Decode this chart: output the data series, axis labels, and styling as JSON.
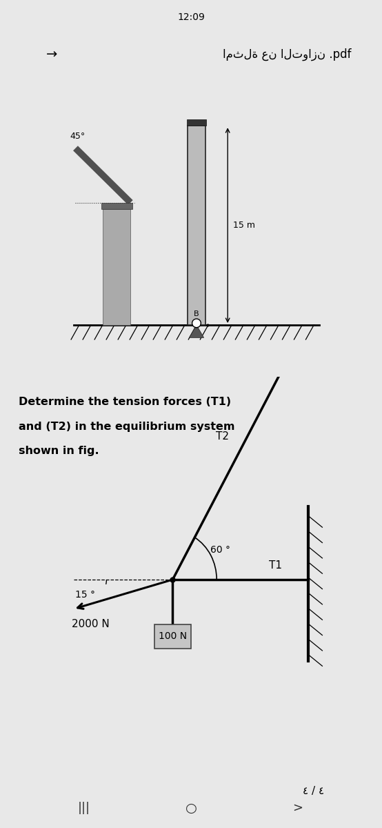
{
  "bg_color": "#e8e8e8",
  "panel1_bg": "#ffffff",
  "panel2_bg": "#ffffff",
  "status_bar_text": "12:09",
  "header_text": "امثلة عن التوازن .pdf",
  "header_arrow": "→",
  "problem_text_line1": "Determine the tension forces (T1)",
  "problem_text_line2": "and (T2) in the equilibrium system",
  "problem_text_line3": "shown in fig.",
  "label_T2": "T2",
  "label_T1": "T1",
  "label_60": "60 °",
  "label_15": "15 °",
  "label_2000N": "2000 N",
  "label_100N": "100 N",
  "label_15m": "15 m",
  "label_45": "45°",
  "label_B": "B",
  "page_label": "٤ / ٤",
  "font_color": "#000000",
  "gray_col": "#909090",
  "light_gray": "#c0c0c0",
  "nav_color": "#333333"
}
